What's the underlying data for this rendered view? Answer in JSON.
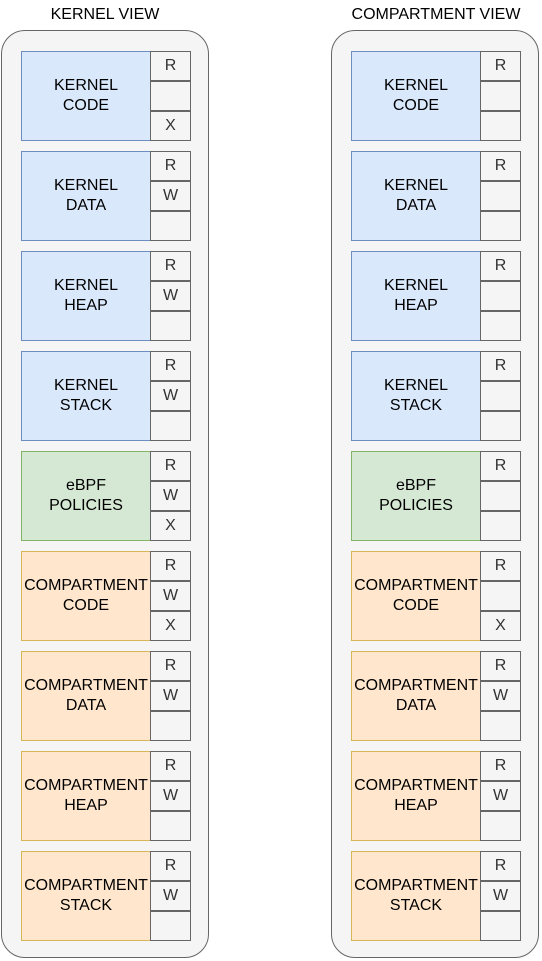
{
  "views": [
    {
      "title": "KERNEL VIEW",
      "regions": [
        {
          "label": "KERNEL\nCODE",
          "type": "kernel",
          "perms": [
            "R",
            "",
            "X"
          ]
        },
        {
          "label": "KERNEL\nDATA",
          "type": "kernel",
          "perms": [
            "R",
            "W",
            ""
          ]
        },
        {
          "label": "KERNEL\nHEAP",
          "type": "kernel",
          "perms": [
            "R",
            "W",
            ""
          ]
        },
        {
          "label": "KERNEL\nSTACK",
          "type": "kernel",
          "perms": [
            "R",
            "W",
            ""
          ]
        },
        {
          "label": "eBPF\nPOLICIES",
          "type": "ebpf",
          "perms": [
            "R",
            "W",
            "X"
          ]
        },
        {
          "label": "COMPARTMENT\nCODE",
          "type": "compartment",
          "perms": [
            "R",
            "W",
            "X"
          ]
        },
        {
          "label": "COMPARTMENT\nDATA",
          "type": "compartment",
          "perms": [
            "R",
            "W",
            ""
          ]
        },
        {
          "label": "COMPARTMENT\nHEAP",
          "type": "compartment",
          "perms": [
            "R",
            "W",
            ""
          ]
        },
        {
          "label": "COMPARTMENT\nSTACK",
          "type": "compartment",
          "perms": [
            "R",
            "W",
            ""
          ]
        }
      ]
    },
    {
      "title": "COMPARTMENT VIEW",
      "regions": [
        {
          "label": "KERNEL\nCODE",
          "type": "kernel",
          "perms": [
            "R",
            "",
            ""
          ]
        },
        {
          "label": "KERNEL\nDATA",
          "type": "kernel",
          "perms": [
            "R",
            "",
            ""
          ]
        },
        {
          "label": "KERNEL\nHEAP",
          "type": "kernel",
          "perms": [
            "R",
            "",
            ""
          ]
        },
        {
          "label": "KERNEL\nSTACK",
          "type": "kernel",
          "perms": [
            "R",
            "",
            ""
          ]
        },
        {
          "label": "eBPF\nPOLICIES",
          "type": "ebpf",
          "perms": [
            "R",
            "",
            ""
          ]
        },
        {
          "label": "COMPARTMENT\nCODE",
          "type": "compartment",
          "perms": [
            "R",
            "",
            "X"
          ]
        },
        {
          "label": "COMPARTMENT\nDATA",
          "type": "compartment",
          "perms": [
            "R",
            "W",
            ""
          ]
        },
        {
          "label": "COMPARTMENT\nHEAP",
          "type": "compartment",
          "perms": [
            "R",
            "W",
            ""
          ]
        },
        {
          "label": "COMPARTMENT\nSTACK",
          "type": "compartment",
          "perms": [
            "R",
            "W",
            ""
          ]
        }
      ]
    }
  ],
  "colors": {
    "kernel_fill": "#dae8fc",
    "ebpf_fill": "#d5e8d4",
    "compartment_fill": "#ffe6cc",
    "container_fill": "#f5f5f5"
  }
}
